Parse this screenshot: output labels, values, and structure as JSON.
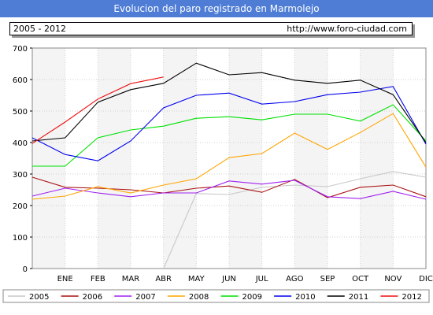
{
  "header": {
    "title": "Evolucion del paro registrado en Marmolejo",
    "period": "2005 - 2012",
    "url": "http://www.foro-ciudad.com"
  },
  "chart_data": {
    "type": "line",
    "title": "Evolucion del paro registrado en Marmolejo",
    "xlabel": "",
    "ylabel": "",
    "ylim": [
      0,
      700
    ],
    "yticks": [
      0,
      100,
      200,
      300,
      400,
      500,
      600,
      700
    ],
    "grid": true,
    "legend_position": "bottom",
    "categories": [
      "",
      "ENE",
      "FEB",
      "MAR",
      "ABR",
      "MAY",
      "JUN",
      "JUL",
      "AGO",
      "SEP",
      "OCT",
      "NOV",
      "DIC"
    ],
    "series": [
      {
        "name": "2005",
        "color": "#c8c8c8",
        "values": [
          null,
          null,
          null,
          null,
          0,
          238,
          235,
          258,
          265,
          260,
          285,
          308,
          290
        ]
      },
      {
        "name": "2006",
        "color": "#aa1111",
        "values": [
          290,
          258,
          255,
          250,
          240,
          255,
          262,
          242,
          283,
          225,
          258,
          265,
          228
        ]
      },
      {
        "name": "2007",
        "color": "#a020f0",
        "values": [
          230,
          255,
          240,
          228,
          240,
          240,
          278,
          268,
          280,
          228,
          222,
          245,
          220
        ]
      },
      {
        "name": "2008",
        "color": "#ffa500",
        "values": [
          220,
          230,
          260,
          240,
          265,
          285,
          352,
          365,
          430,
          378,
          432,
          492,
          322
        ]
      },
      {
        "name": "2009",
        "color": "#00e000",
        "values": [
          325,
          325,
          415,
          440,
          452,
          477,
          482,
          472,
          490,
          490,
          468,
          520,
          405
        ]
      },
      {
        "name": "2010",
        "color": "#0000ee",
        "values": [
          415,
          362,
          342,
          405,
          510,
          550,
          557,
          522,
          530,
          552,
          560,
          578,
          395
        ]
      },
      {
        "name": "2011",
        "color": "#000000",
        "values": [
          405,
          415,
          528,
          568,
          588,
          652,
          615,
          622,
          598,
          588,
          598,
          552,
          400
        ]
      },
      {
        "name": "2012",
        "color": "#ee1111",
        "values": [
          397,
          465,
          538,
          587,
          608,
          null,
          null,
          null,
          null,
          null,
          null,
          null,
          null
        ]
      }
    ]
  }
}
